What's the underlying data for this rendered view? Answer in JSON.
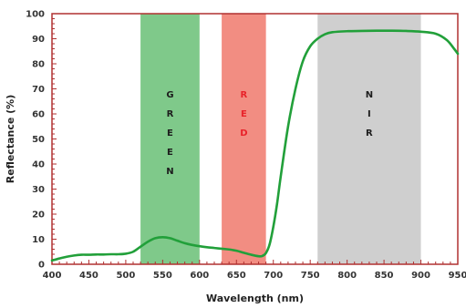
{
  "chart_data": {
    "type": "line",
    "title": "",
    "xlabel": "Wavelength (nm)",
    "ylabel": "Reflectance (%)",
    "xlim": [
      400,
      950
    ],
    "ylim": [
      0,
      100
    ],
    "xticks": [
      400,
      450,
      500,
      550,
      600,
      650,
      700,
      750,
      800,
      850,
      900,
      950
    ],
    "yticks": [
      0,
      10,
      20,
      30,
      40,
      50,
      60,
      70,
      80,
      90,
      100
    ],
    "grid": false,
    "frame_color": "#b03030",
    "series": [
      {
        "color": "#22a03a",
        "points": [
          [
            400,
            1.5
          ],
          [
            410,
            2.3
          ],
          [
            420,
            3.0
          ],
          [
            430,
            3.5
          ],
          [
            440,
            3.8
          ],
          [
            450,
            3.8
          ],
          [
            460,
            3.9
          ],
          [
            470,
            3.9
          ],
          [
            480,
            4.0
          ],
          [
            490,
            4.0
          ],
          [
            500,
            4.2
          ],
          [
            510,
            5.0
          ],
          [
            520,
            7.0
          ],
          [
            530,
            9.0
          ],
          [
            540,
            10.4
          ],
          [
            550,
            10.8
          ],
          [
            560,
            10.4
          ],
          [
            570,
            9.4
          ],
          [
            580,
            8.4
          ],
          [
            590,
            7.7
          ],
          [
            600,
            7.2
          ],
          [
            610,
            6.8
          ],
          [
            620,
            6.5
          ],
          [
            630,
            6.2
          ],
          [
            640,
            5.9
          ],
          [
            650,
            5.4
          ],
          [
            660,
            4.6
          ],
          [
            670,
            3.8
          ],
          [
            680,
            3.2
          ],
          [
            685,
            3.3
          ],
          [
            690,
            4.5
          ],
          [
            695,
            8.0
          ],
          [
            700,
            15.0
          ],
          [
            705,
            24.0
          ],
          [
            710,
            35.0
          ],
          [
            720,
            55.0
          ],
          [
            730,
            70.0
          ],
          [
            740,
            81.0
          ],
          [
            750,
            87.0
          ],
          [
            760,
            90.0
          ],
          [
            770,
            91.8
          ],
          [
            780,
            92.6
          ],
          [
            800,
            93.0
          ],
          [
            820,
            93.1
          ],
          [
            840,
            93.2
          ],
          [
            860,
            93.2
          ],
          [
            880,
            93.1
          ],
          [
            900,
            92.8
          ],
          [
            920,
            92.0
          ],
          [
            935,
            89.5
          ],
          [
            945,
            86.0
          ],
          [
            950,
            84.0
          ]
        ]
      }
    ],
    "bands": [
      {
        "label": "GREEN",
        "letters": [
          "G",
          "R",
          "E",
          "E",
          "N"
        ],
        "x0": 520,
        "x1": 600,
        "fill": "#7fc98a",
        "text_color": "#1d1d1d"
      },
      {
        "label": "RED",
        "letters": [
          "R",
          "E",
          "D"
        ],
        "x0": 630,
        "x1": 690,
        "fill": "#f28d82",
        "text_color": "#e8232a"
      },
      {
        "label": "NIR",
        "letters": [
          "N",
          "I",
          "R"
        ],
        "x0": 760,
        "x1": 900,
        "fill": "#cfcfcf",
        "text_color": "#1d1d1d"
      }
    ]
  }
}
